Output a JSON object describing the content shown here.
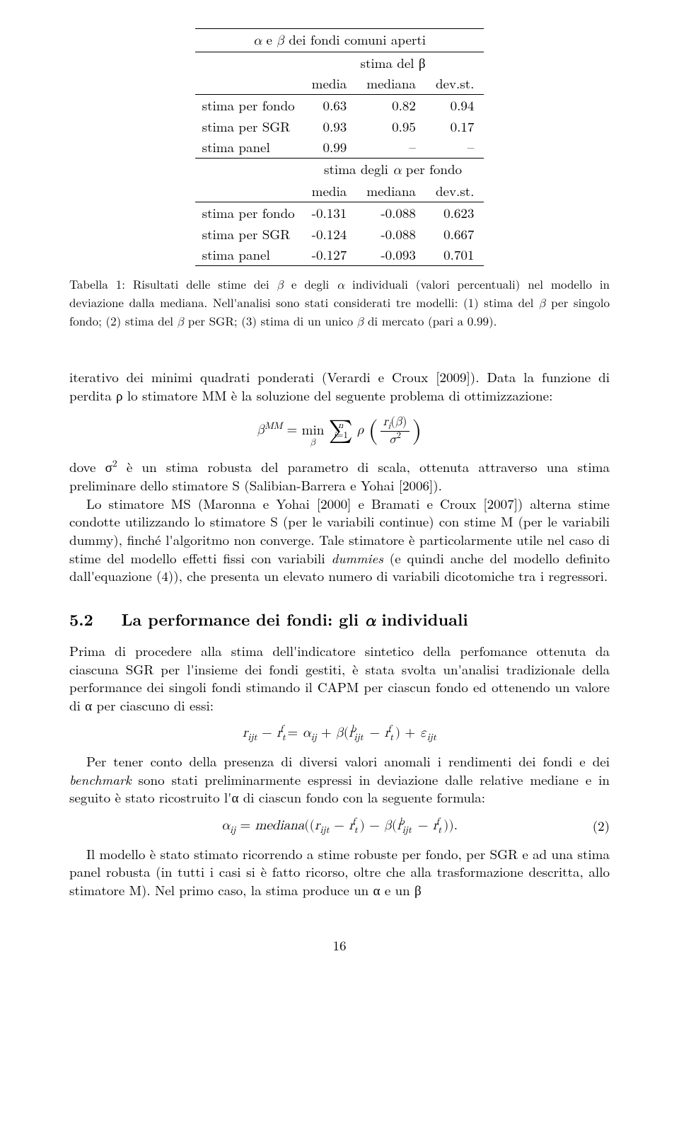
{
  "table": {
    "title": "α e β dei fondi comuni aperti",
    "section1": {
      "head_main": "stima del β",
      "head_cols": [
        "media",
        "mediana",
        "dev.st."
      ],
      "rows": [
        {
          "label": "stima per fondo",
          "media": "0.63",
          "mediana": "0.82",
          "devst": "0.94"
        },
        {
          "label": "stima per SGR",
          "media": "0.93",
          "mediana": "0.95",
          "devst": "0.17"
        },
        {
          "label": "stima panel",
          "media": "0.99",
          "mediana": "–",
          "devst": "–"
        }
      ]
    },
    "section2": {
      "head_main": "stima degli α per fondo",
      "head_cols": [
        "media",
        "mediana",
        "dev.st."
      ],
      "rows": [
        {
          "label": "stima per fondo",
          "media": "-0.131",
          "mediana": "-0.088",
          "devst": "0.623"
        },
        {
          "label": "stima per SGR",
          "media": "-0.124",
          "mediana": "-0.088",
          "devst": "0.667"
        },
        {
          "label": "stima panel",
          "media": "-0.127",
          "mediana": "-0.093",
          "devst": "0.701"
        }
      ]
    }
  },
  "caption": {
    "label": "Tabella 1:",
    "text_a": "Risultati delle stime dei β e degli α individuali (valori percentuali) nel modello in deviazione dalla mediana. Nell'analisi sono stati considerati tre modelli: (1) stima del β per singolo fondo; (2) stima del β per SGR; (3) stima di un unico β di mercato (pari a 0.99)."
  },
  "para1a": "iterativo dei minimi quadrati ponderati (Verardi e Croux [2009]). Data la funzione di perdita ρ lo stimatore MM è la soluzione del seguente problema di ottimizzazione:",
  "para2a": "dove σ",
  "para2b": " è un stima robusta del parametro di scala, ottenuta attraverso una stima preliminare dello stimatore S (Salibian-Barrera e Yohai [2006]).",
  "para3": "Lo stimatore MS (Maronna e Yohai [2000] e Bramati e Croux [2007]) alterna stime condotte utilizzando lo stimatore S (per le variabili continue) con stime M (per le variabili dummy), finché l'algoritmo non converge. Tale stimatore è particolarmente utile nel caso di stime del modello effetti fissi con variabili ",
  "para3_it": "dummies",
  "para3b": " (e quindi anche del modello definito dall'equazione (4)), che presenta un elevato numero di variabili dicotomiche tra i regressori.",
  "section": {
    "num": "5.2",
    "title": "La performance dei fondi: gli α individuali"
  },
  "para4": "Prima di procedere alla stima dell'indicatore sintetico della perfomance ottenuta da ciascuna SGR per l'insieme dei fondi gestiti, è stata svolta un'analisi tradizionale della performance dei singoli fondi stimando il CAPM per ciascun fondo ed ottenendo un valore di α per ciascuno di essi:",
  "para5a": "Per tener conto della presenza di diversi valori anomali i rendimenti dei fondi e dei ",
  "para5_it": "benchmark",
  "para5b": " sono stati preliminarmente espressi in deviazione dalle relative mediane e in seguito è stato ricostruito l'α di ciascun fondo con la seguente formula:",
  "eq2_num": "(2)",
  "para6": "Il modello è stato stimato ricorrendo a stime robuste per fondo, per SGR e ad una stima panel robusta (in tutti i casi si è fatto ricorso, oltre che alla trasformazione descritta, allo stimatore M). Nel primo caso, la stima produce un α e un β",
  "page_num": "16"
}
